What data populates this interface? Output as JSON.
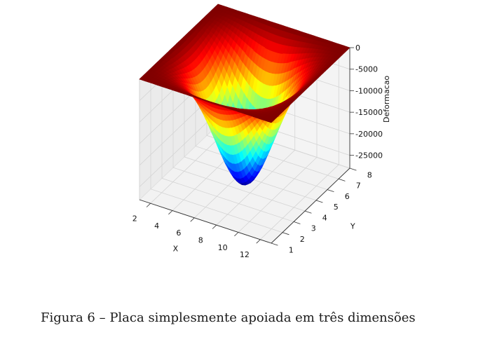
{
  "caption": "Figura 6 – Placa simplesmente apoiada em três dimensões",
  "chart_data": {
    "type": "surface",
    "colormap": "jet",
    "title": "",
    "xlabel": "X",
    "ylabel": "Y",
    "zlabel": "Deformacao",
    "xlim": [
      1,
      13
    ],
    "ylim": [
      1,
      8
    ],
    "zlim": [
      -28000,
      0
    ],
    "xticks": [
      2,
      4,
      6,
      8,
      10,
      12
    ],
    "yticks": [
      1,
      2,
      3,
      4,
      5,
      6,
      7,
      8
    ],
    "zticks": [
      0,
      -5000,
      -10000,
      -15000,
      -20000,
      -25000
    ],
    "surface": {
      "shape": "simply supported plate, first mode",
      "z_at_edges": 0,
      "z_min": -28000,
      "z_min_at": {
        "x": 7,
        "y": 4.5
      }
    },
    "grid": true
  }
}
